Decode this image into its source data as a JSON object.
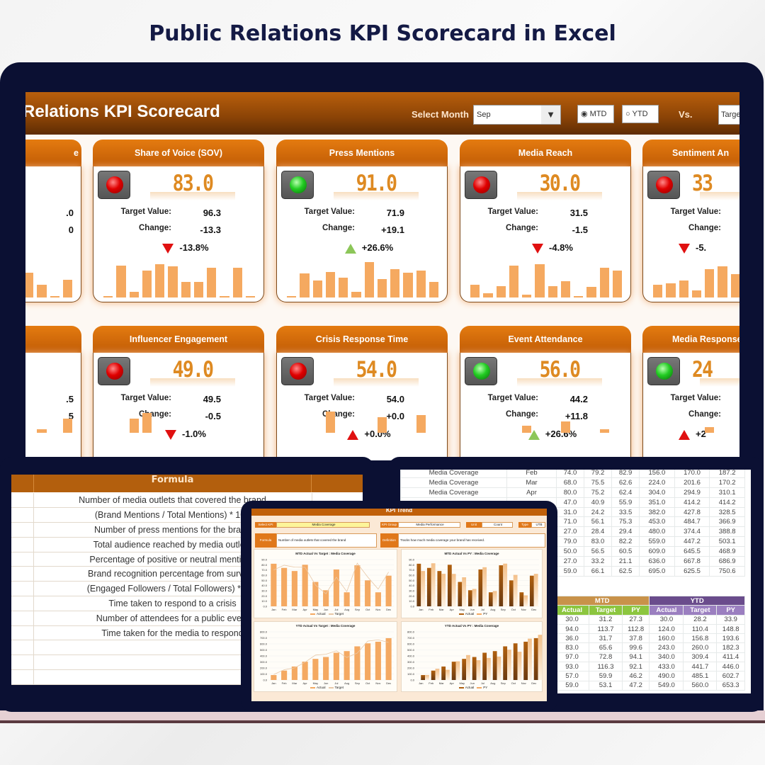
{
  "page_title": "Public Relations KPI Scorecard in Excel",
  "dashboard": {
    "title": "Relations KPI Scorecard",
    "select_month_label": "Select Month",
    "month_value": "Sep",
    "mtd_label": "MTD",
    "ytd_label": "YTD",
    "selected_period": "MTD",
    "vs_label": "Vs.",
    "vs_value": "Target",
    "target_label": "Target Value:",
    "change_label": "Change:"
  },
  "cards_row1": [
    {
      "title": "e",
      "value": "",
      "target": ".0",
      "change": "0",
      "pct": "",
      "dir": "",
      "arrow_color": "",
      "light": "",
      "spark": [
        0,
        0,
        0,
        0,
        0,
        0,
        0,
        0,
        35,
        18,
        2,
        25
      ],
      "partial": "left"
    },
    {
      "title": "Share of Voice (SOV)",
      "value": "83.0",
      "target": "96.3",
      "change": "-13.3",
      "pct": "-13.8%",
      "dir": "down",
      "arrow_color": "#e01010",
      "light": "red",
      "spark": [
        2,
        45,
        8,
        38,
        47,
        44,
        22,
        22,
        42,
        2,
        42,
        2
      ]
    },
    {
      "title": "Press Mentions",
      "value": "91.0",
      "target": "71.9",
      "change": "+19.1",
      "pct": "+26.6%",
      "dir": "up",
      "arrow_color": "#8cc659",
      "light": "green",
      "spark": [
        2,
        34,
        24,
        36,
        28,
        8,
        50,
        26,
        40,
        35,
        38,
        22
      ]
    },
    {
      "title": "Media Reach",
      "value": "30.0",
      "target": "31.5",
      "change": "-1.5",
      "pct": "-4.8%",
      "dir": "down",
      "arrow_color": "#e01010",
      "light": "red",
      "spark": [
        18,
        6,
        16,
        45,
        4,
        47,
        16,
        23,
        2,
        15,
        42,
        38
      ]
    },
    {
      "title": "Sentiment An",
      "value": "33",
      "target": "",
      "change": "",
      "pct": "-5.",
      "dir": "down",
      "arrow_color": "#e01010",
      "light": "red",
      "spark": [
        18,
        20,
        24,
        10,
        40,
        44,
        33,
        30,
        20,
        10,
        15,
        20
      ],
      "partial": "right"
    }
  ],
  "cards_row2": [
    {
      "title": "",
      "value": "",
      "target": ".5",
      "change": "5",
      "pct": "",
      "dir": "",
      "arrow_color": "",
      "light": "",
      "spark": [
        0,
        0,
        0,
        0,
        0,
        0,
        0,
        0,
        0,
        5,
        0,
        20
      ],
      "partial": "left"
    },
    {
      "title": "Influencer Engagement",
      "value": "49.0",
      "target": "49.5",
      "change": "-0.5",
      "pct": "-1.0%",
      "dir": "down",
      "arrow_color": "#e01010",
      "light": "red",
      "spark": [
        0,
        0,
        20,
        28,
        0,
        0,
        0,
        0,
        0,
        0,
        0,
        0
      ]
    },
    {
      "title": "Crisis Response Time",
      "value": "54.0",
      "target": "54.0",
      "change": "+0.0",
      "pct": "+0.0%",
      "dir": "up",
      "arrow_color": "#e01010",
      "light": "red",
      "spark": [
        0,
        0,
        0,
        30,
        0,
        0,
        0,
        22,
        0,
        0,
        25,
        0
      ]
    },
    {
      "title": "Event Attendance",
      "value": "56.0",
      "target": "44.2",
      "change": "+11.8",
      "pct": "+26.6%",
      "dir": "up",
      "arrow_color": "#8cc659",
      "light": "green",
      "spark": [
        0,
        0,
        0,
        0,
        10,
        0,
        0,
        16,
        0,
        0,
        5,
        0
      ]
    },
    {
      "title": "Media Response",
      "value": "24",
      "target": "",
      "change": "",
      "pct": "+2",
      "dir": "up",
      "arrow_color": "#e01010",
      "light": "green",
      "spark": [
        0,
        0,
        0,
        0,
        8,
        0,
        0,
        0,
        0,
        0,
        0,
        0
      ],
      "partial": "right"
    }
  ],
  "formula_table": {
    "header": "Formula",
    "rows": [
      "Number of media outlets that covered the brand",
      "(Brand Mentions / Total Mentions) * 100",
      "Number of press mentions for the brand",
      "Total audience reached by media outlets",
      "Percentage of positive or neutral mentions",
      "Brand recognition percentage from surveys",
      "(Engaged Followers / Total Followers) * 100",
      "Time taken to respond to a crisis",
      "Number of attendees for a public event",
      "Time taken for the media to respond"
    ]
  },
  "data_table": {
    "rows": [
      {
        "kpi": "Media Coverage",
        "month": "Feb",
        "v": [
          "74.0",
          "79.2",
          "82.9",
          "156.0",
          "170.0",
          "187.2"
        ]
      },
      {
        "kpi": "Media Coverage",
        "month": "Mar",
        "v": [
          "68.0",
          "75.5",
          "62.6",
          "224.0",
          "201.6",
          "170.2"
        ]
      },
      {
        "kpi": "Media Coverage",
        "month": "Apr",
        "v": [
          "80.0",
          "75.2",
          "62.4",
          "304.0",
          "294.9",
          "310.1"
        ]
      },
      {
        "kpi": "",
        "month": "",
        "v": [
          "47.0",
          "40.9",
          "55.9",
          "351.0",
          "414.2",
          "414.2"
        ]
      },
      {
        "kpi": "",
        "month": "",
        "v": [
          "31.0",
          "24.2",
          "33.5",
          "382.0",
          "427.8",
          "328.5"
        ]
      },
      {
        "kpi": "",
        "month": "",
        "v": [
          "71.0",
          "56.1",
          "75.3",
          "453.0",
          "484.7",
          "366.9"
        ]
      },
      {
        "kpi": "",
        "month": "",
        "v": [
          "27.0",
          "28.4",
          "29.4",
          "480.0",
          "374.4",
          "388.8"
        ]
      },
      {
        "kpi": "",
        "month": "",
        "v": [
          "79.0",
          "83.0",
          "82.2",
          "559.0",
          "447.2",
          "503.1"
        ]
      },
      {
        "kpi": "",
        "month": "",
        "v": [
          "50.0",
          "56.5",
          "60.5",
          "609.0",
          "645.5",
          "468.9"
        ]
      },
      {
        "kpi": "",
        "month": "",
        "v": [
          "27.0",
          "33.2",
          "21.1",
          "636.0",
          "667.8",
          "686.9"
        ]
      },
      {
        "kpi": "",
        "month": "",
        "v": [
          "59.0",
          "66.1",
          "62.5",
          "695.0",
          "625.5",
          "750.6"
        ]
      }
    ]
  },
  "summary_table": {
    "mtd": "MTD",
    "ytd": "YTD",
    "sub": [
      "Actual",
      "Target",
      "PY",
      "Actual",
      "Target",
      "PY"
    ],
    "rows": [
      [
        "30.0",
        "31.2",
        "27.3",
        "30.0",
        "28.2",
        "33.9"
      ],
      [
        "94.0",
        "113.7",
        "112.8",
        "124.0",
        "110.4",
        "148.8"
      ],
      [
        "36.0",
        "31.7",
        "37.8",
        "160.0",
        "156.8",
        "193.6"
      ],
      [
        "83.0",
        "65.6",
        "99.6",
        "243.0",
        "260.0",
        "182.3"
      ],
      [
        "97.0",
        "72.8",
        "94.1",
        "340.0",
        "309.4",
        "411.4"
      ],
      [
        "93.0",
        "116.3",
        "92.1",
        "433.0",
        "441.7",
        "446.0"
      ],
      [
        "57.0",
        "59.9",
        "46.2",
        "490.0",
        "485.1",
        "602.7"
      ],
      [
        "59.0",
        "53.1",
        "47.2",
        "549.0",
        "560.0",
        "653.3"
      ]
    ]
  },
  "trend": {
    "title": "KPI Trend",
    "select_kpi_label": "Select KPI",
    "select_kpi": "Media Coverage",
    "group_label": "KPI Group",
    "group": "Media Performance",
    "unit_label": "Unit",
    "unit": "Count",
    "type_label": "Type",
    "type": "UTB",
    "formula_label": "Formula",
    "formula": "Number of media outlets that covered the brand",
    "definition_label": "Definition",
    "definition": "Tracks how much media coverage your brand has received."
  },
  "chart_data": [
    {
      "type": "bar",
      "title": "MTD Actual Vs Target : Media Coverage",
      "categories": [
        "Jan",
        "Feb",
        "Mar",
        "Apr",
        "May",
        "Jun",
        "Jul",
        "Aug",
        "Sep",
        "Oct",
        "Nov",
        "Dec"
      ],
      "series": [
        {
          "name": "Actual",
          "kind": "bar",
          "values": [
            82,
            74,
            68,
            80,
            47,
            31,
            71,
            27,
            79,
            50,
            27,
            59
          ]
        },
        {
          "name": "Target",
          "kind": "line",
          "values": [
            70,
            79.2,
            75.5,
            75.2,
            40.9,
            24.2,
            56.1,
            28.4,
            83.0,
            56.5,
            33.2,
            66.1
          ]
        }
      ],
      "ylim": [
        0,
        90
      ],
      "yticks": [
        "0.0",
        "10.0",
        "20.0",
        "30.0",
        "40.0",
        "50.0",
        "60.0",
        "70.0",
        "80.0",
        "90.0"
      ]
    },
    {
      "type": "bar",
      "title": "MTD Actual Vs PY : Media Coverage",
      "categories": [
        "Jan",
        "Feb",
        "Mar",
        "Apr",
        "May",
        "Jun",
        "Jul",
        "Aug",
        "Sep",
        "Oct",
        "Nov",
        "Dec"
      ],
      "series": [
        {
          "name": "Actual",
          "kind": "bar",
          "values": [
            82,
            74,
            68,
            80,
            47,
            31,
            71,
            27,
            79,
            50,
            27,
            59
          ]
        },
        {
          "name": "PY",
          "kind": "bar",
          "values": [
            68,
            82.9,
            62.6,
            62.4,
            55.9,
            33.5,
            75.3,
            29.4,
            82.2,
            60.5,
            21.1,
            62.5
          ]
        }
      ],
      "ylim": [
        0,
        90
      ],
      "yticks": [
        "0.0",
        "10.0",
        "20.0",
        "30.0",
        "40.0",
        "50.0",
        "60.0",
        "70.0",
        "80.0",
        "90.0"
      ]
    },
    {
      "type": "bar",
      "title": "YTD Actual Vs Target : Media Coverage",
      "categories": [
        "Jan",
        "Feb",
        "Mar",
        "Apr",
        "May",
        "Jun",
        "Jul",
        "Aug",
        "Sep",
        "Oct",
        "Nov",
        "Dec"
      ],
      "series": [
        {
          "name": "Actual",
          "kind": "bar",
          "values": [
            82,
            156,
            224,
            304,
            351,
            382,
            453,
            480,
            559,
            609,
            636,
            695
          ]
        },
        {
          "name": "Target",
          "kind": "line",
          "values": [
            90.8,
            170,
            201.6,
            294.9,
            414.2,
            427.8,
            484.7,
            374.4,
            447.2,
            645.5,
            667.8,
            625.5
          ]
        }
      ],
      "ylim": [
        0,
        800
      ],
      "yticks": [
        "0.0",
        "100.0",
        "200.0",
        "300.0",
        "400.0",
        "500.0",
        "600.0",
        "700.0",
        "800.0"
      ]
    },
    {
      "type": "bar",
      "title": "YTD Actual Vs PY : Media Coverage",
      "categories": [
        "Jan",
        "Feb",
        "Mar",
        "Apr",
        "May",
        "Jun",
        "Jul",
        "Aug",
        "Sep",
        "Oct",
        "Nov",
        "Dec"
      ],
      "series": [
        {
          "name": "Actual",
          "kind": "bar",
          "values": [
            82,
            156,
            224,
            304,
            351,
            382,
            453,
            480,
            559,
            609,
            636,
            695
          ]
        },
        {
          "name": "PY",
          "kind": "bar",
          "values": [
            83,
            187.2,
            170.2,
            310.1,
            414.2,
            328.5,
            366.9,
            388.8,
            503.1,
            468.9,
            686.9,
            750.6
          ]
        }
      ],
      "ylim": [
        0,
        800
      ],
      "yticks": [
        "0.0",
        "100.0",
        "200.0",
        "300.0",
        "400.0",
        "500.0",
        "600.0",
        "700.0",
        "800.0"
      ]
    }
  ],
  "colors": {
    "brand": "#c0600a",
    "spark": "#f5a960",
    "mtd": "#c8924a",
    "mtd_sub": "#8cc63f",
    "ytd": "#6a4c8c",
    "ytd_sub": "#9b7fc0",
    "frame": "#0b1033"
  }
}
